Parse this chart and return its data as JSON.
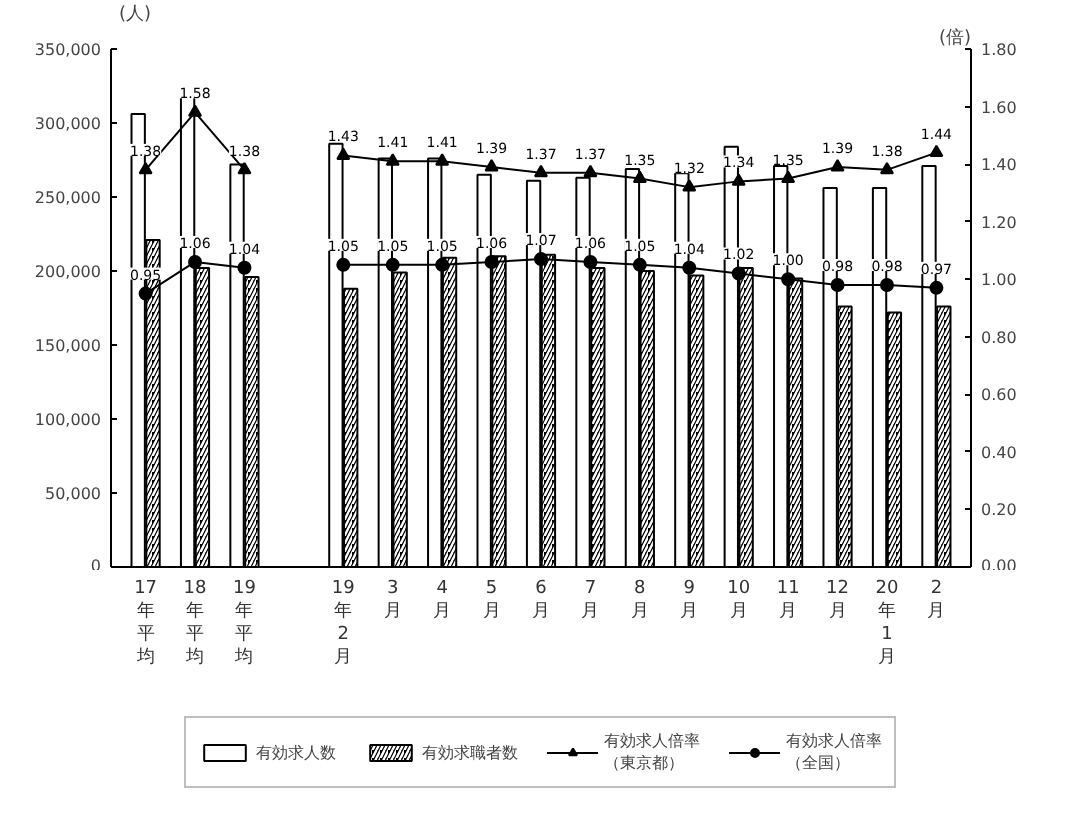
{
  "chart_data": {
    "type": "bar",
    "ylabel": "(人)",
    "y2label": "(倍)",
    "categories": [
      "17年平均",
      "18年平均",
      "19年平均",
      null,
      "19年2月",
      "3月",
      "4月",
      "5月",
      "6月",
      "7月",
      "8月",
      "9月",
      "10月",
      "11月",
      "12月",
      "20年1月",
      "2月"
    ],
    "series": [
      {
        "name": "有効求人数",
        "color": "#ffffff",
        "values": [
          306000,
          320000,
          272000,
          null,
          286000,
          276000,
          276000,
          265000,
          261000,
          263000,
          269000,
          266000,
          284000,
          271000,
          256000,
          256000,
          271000
        ]
      },
      {
        "name": "有効求職者数",
        "color": "#000000",
        "values": [
          221000,
          202000,
          196000,
          null,
          188000,
          199000,
          209000,
          210000,
          211000,
          202000,
          200000,
          197000,
          202000,
          195000,
          176000,
          172000,
          176000
        ]
      },
      {
        "name": "有効求人倍率（東京都）",
        "type": "line",
        "axis": "y2",
        "marker": "triangle",
        "color": "#000000",
        "values": [
          1.38,
          1.58,
          1.38,
          null,
          1.43,
          1.41,
          1.41,
          1.39,
          1.37,
          1.37,
          1.35,
          1.32,
          1.34,
          1.35,
          1.39,
          1.38,
          1.44
        ],
        "value_labels": [
          "1.38",
          "1.58",
          "1.38",
          null,
          "1.43",
          "1.41",
          "1.41",
          "1.39",
          "1.37",
          "1.37",
          "1.35",
          "1.32",
          "1.34",
          "1.35",
          "1.39",
          "1.38",
          "1.44"
        ]
      },
      {
        "name": "有効求人倍率（全国）",
        "type": "line",
        "axis": "y2",
        "marker": "circle",
        "color": "#000000",
        "values": [
          0.95,
          1.06,
          1.04,
          null,
          1.05,
          1.05,
          1.05,
          1.06,
          1.07,
          1.06,
          1.05,
          1.04,
          1.02,
          1.0,
          0.98,
          0.98,
          0.97
        ],
        "value_labels": [
          "0.95",
          "1.06",
          "1.04",
          null,
          "1.05",
          "1.05",
          "1.05",
          "1.06",
          "1.07",
          "1.06",
          "1.05",
          "1.04",
          "1.02",
          "1.00",
          "0.98",
          "0.98",
          "0.97"
        ]
      }
    ],
    "ylim": [
      0,
      350000
    ],
    "yticks": [
      0,
      {
        "value": 50000,
        "label": "50,000"
      },
      {
        "value": 100000,
        "label": "100,000"
      },
      {
        "value": 150000,
        "label": "150,000"
      },
      {
        "value": 200000,
        "label": "200,000"
      },
      {
        "value": 250000,
        "label": "250,000"
      },
      {
        "value": 300000,
        "label": "300,000"
      },
      {
        "value": 350000,
        "label": "350,000"
      }
    ],
    "y2lim": [
      0,
      1.8
    ],
    "y2ticks": [
      {
        "value": 0,
        "label": "0.00"
      },
      {
        "value": 0.2,
        "label": "0.20"
      },
      {
        "value": 0.4,
        "label": "0.40"
      },
      {
        "value": 0.6,
        "label": "0.60"
      },
      {
        "value": 0.8,
        "label": "0.80"
      },
      {
        "value": 1.0,
        "label": "1.00"
      },
      {
        "value": 1.2,
        "label": "1.20"
      },
      {
        "value": 1.4,
        "label": "1.40"
      },
      {
        "value": 1.6,
        "label": "1.60"
      },
      {
        "value": 1.8,
        "label": "1.80"
      }
    ],
    "grid": false,
    "legend": "bottom"
  }
}
